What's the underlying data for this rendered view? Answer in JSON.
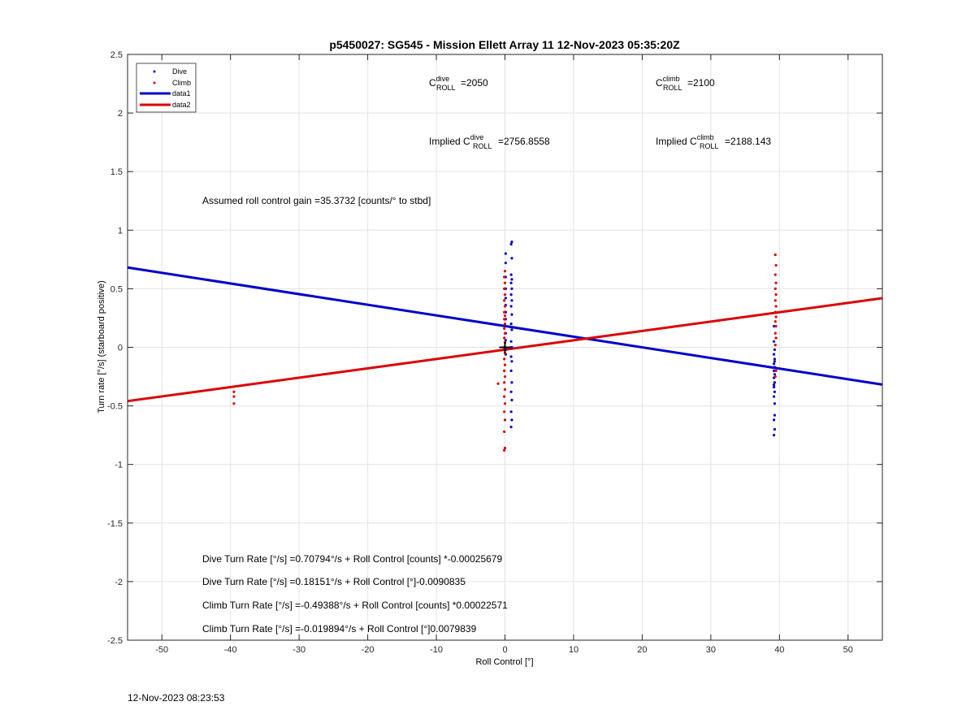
{
  "footer_timestamp": "12-Nov-2023 08:23:53",
  "colors": {
    "dive": "#0000cc",
    "climb": "#dd0000",
    "grid": "#e3e3e3",
    "axis": "#262626"
  },
  "chart_data": {
    "type": "scatter",
    "title": "p5450027: SG545 - Mission Ellett Array 11 12-Nov-2023 05:35:20Z",
    "xlabel": "Roll Control [°]",
    "ylabel": "Turn rate [°/s] (starboard positive)",
    "xlim": [
      -55,
      55
    ],
    "ylim": [
      -2.5,
      2.5
    ],
    "xticks": [
      -50,
      -40,
      -30,
      -20,
      -10,
      0,
      10,
      20,
      30,
      40,
      50
    ],
    "yticks": [
      2.5,
      2,
      1.5,
      1,
      0.5,
      0,
      -0.5,
      -1,
      -1.5,
      -2,
      -2.5
    ],
    "ytick_labels": [
      "2.5",
      "2",
      "1.5",
      "1",
      "0.5",
      "0",
      "-0.5",
      "-1",
      "-1.5",
      "-2",
      "-2.5"
    ],
    "grid": true,
    "legend": {
      "placement": "top-left",
      "entries": [
        {
          "label": "Dive",
          "style": "dot",
          "color": "#0000cc"
        },
        {
          "label": "Climb",
          "style": "dot",
          "color": "#dd0000"
        },
        {
          "label": "data1",
          "style": "line",
          "color": "#0000cc"
        },
        {
          "label": "data2",
          "style": "line",
          "color": "#dd0000"
        }
      ]
    },
    "series": [
      {
        "name": "Dive",
        "color": "#0000cc",
        "points": [
          [
            1.0,
            0.9
          ],
          [
            0.9,
            0.88
          ],
          [
            1.0,
            0.76
          ],
          [
            0.9,
            0.62
          ],
          [
            1.0,
            0.58
          ],
          [
            0.9,
            0.55
          ],
          [
            1.0,
            0.5
          ],
          [
            0.9,
            0.45
          ],
          [
            1.0,
            0.4
          ],
          [
            0.9,
            0.35
          ],
          [
            1.0,
            0.28
          ],
          [
            0.9,
            0.2
          ],
          [
            1.0,
            0.15
          ],
          [
            0.9,
            0.05
          ],
          [
            1.0,
            0.0
          ],
          [
            0.9,
            -0.08
          ],
          [
            1.0,
            -0.12
          ],
          [
            0.9,
            -0.2
          ],
          [
            1.0,
            -0.3
          ],
          [
            0.9,
            -0.38
          ],
          [
            1.0,
            -0.45
          ],
          [
            0.9,
            -0.55
          ],
          [
            1.0,
            -0.62
          ],
          [
            0.9,
            -0.68
          ],
          [
            0.1,
            0.8
          ],
          [
            0.1,
            0.72
          ],
          [
            0.1,
            0.6
          ],
          [
            0.1,
            0.5
          ],
          [
            0.1,
            0.42
          ],
          [
            0.1,
            0.36
          ],
          [
            0.1,
            0.3
          ],
          [
            0.1,
            0.24
          ],
          [
            0.1,
            0.12
          ],
          [
            0.1,
            0.06
          ],
          [
            0.1,
            -0.02
          ],
          [
            0.1,
            -0.06
          ],
          [
            39.2,
            0.05
          ],
          [
            39.3,
            -0.02
          ],
          [
            39.2,
            -0.06
          ],
          [
            39.3,
            -0.1
          ],
          [
            39.2,
            -0.14
          ],
          [
            39.3,
            -0.17
          ],
          [
            39.2,
            -0.2
          ],
          [
            39.3,
            -0.23
          ],
          [
            39.2,
            -0.26
          ],
          [
            39.3,
            -0.3
          ],
          [
            39.2,
            -0.34
          ],
          [
            39.3,
            -0.38
          ],
          [
            39.2,
            -0.42
          ],
          [
            39.3,
            -0.48
          ],
          [
            39.2,
            0.18
          ],
          [
            39.3,
            -0.58
          ],
          [
            39.2,
            -0.62
          ],
          [
            39.3,
            -0.7
          ],
          [
            39.2,
            -0.75
          ],
          [
            39.3,
            -0.12
          ],
          [
            39.2,
            -0.32
          ]
        ]
      },
      {
        "name": "Climb",
        "color": "#dd0000",
        "points": [
          [
            -39.5,
            -0.38
          ],
          [
            -39.5,
            -0.42
          ],
          [
            -39.5,
            -0.48
          ],
          [
            -1.0,
            -0.31
          ],
          [
            0.0,
            0.65
          ],
          [
            -0.1,
            0.6
          ],
          [
            0.0,
            0.55
          ],
          [
            -0.1,
            0.5
          ],
          [
            0.0,
            0.45
          ],
          [
            -0.1,
            0.4
          ],
          [
            0.0,
            0.35
          ],
          [
            -0.1,
            0.3
          ],
          [
            0.0,
            0.27
          ],
          [
            -0.1,
            0.24
          ],
          [
            0.0,
            0.2
          ],
          [
            -0.1,
            0.16
          ],
          [
            0.0,
            0.12
          ],
          [
            -0.1,
            0.08
          ],
          [
            0.0,
            0.04
          ],
          [
            -0.1,
            0.0
          ],
          [
            0.0,
            -0.05
          ],
          [
            -0.1,
            -0.1
          ],
          [
            0.0,
            -0.15
          ],
          [
            -0.1,
            -0.2
          ],
          [
            0.0,
            -0.25
          ],
          [
            -0.1,
            -0.3
          ],
          [
            0.0,
            -0.36
          ],
          [
            -0.1,
            -0.42
          ],
          [
            0.0,
            -0.48
          ],
          [
            -0.1,
            -0.55
          ],
          [
            0.0,
            -0.62
          ],
          [
            -0.1,
            -0.72
          ],
          [
            0.0,
            -0.86
          ],
          [
            -0.1,
            -0.88
          ],
          [
            39.4,
            0.79
          ],
          [
            39.5,
            0.7
          ],
          [
            39.4,
            0.62
          ],
          [
            39.5,
            0.55
          ],
          [
            39.4,
            0.5
          ],
          [
            39.5,
            0.45
          ],
          [
            39.4,
            0.4
          ],
          [
            39.5,
            0.35
          ],
          [
            39.4,
            0.3
          ],
          [
            39.5,
            0.26
          ],
          [
            39.4,
            0.22
          ],
          [
            39.5,
            0.18
          ],
          [
            39.4,
            0.12
          ],
          [
            39.5,
            0.08
          ],
          [
            39.4,
            0.02
          ],
          [
            39.5,
            -0.2
          ],
          [
            39.4,
            -0.25
          ]
        ]
      }
    ],
    "fit_lines": [
      {
        "name": "data1",
        "color": "#0000cc",
        "intercept": 0.18151,
        "slope": -0.0090835
      },
      {
        "name": "data2",
        "color": "#dd0000",
        "intercept": -0.019894,
        "slope": 0.0079839
      }
    ],
    "center_marker": {
      "x": 0,
      "y": 0,
      "symbol": "+"
    },
    "annotations": {
      "c_roll_dive": {
        "base": "C",
        "sup": "dive",
        "sub": "ROLL",
        "value": "=2050"
      },
      "c_roll_climb": {
        "base": "C",
        "sup": "climb",
        "sub": "ROLL",
        "value": "=2100"
      },
      "implied_dive": {
        "prefix": "Implied C",
        "sup": "dive",
        "sub": "ROLL",
        "value": "=2756.8558"
      },
      "implied_climb": {
        "prefix": "Implied C",
        "sup": "climb",
        "sub": "ROLL",
        "value": "=2188.143"
      },
      "gain": "Assumed roll control gain =35.3732 [counts/° to stbd]",
      "eq1": "Dive Turn Rate [°/s] =0.70794°/s + Roll Control [counts] *-0.00025679",
      "eq2": "Dive Turn Rate [°/s] =0.18151°/s + Roll Control [°]-0.0090835",
      "eq3": "Climb Turn Rate [°/s] =-0.49388°/s + Roll Control [counts] *0.00022571",
      "eq4": "Climb Turn Rate [°/s] =-0.019894°/s + Roll Control [°]0.0079839"
    }
  }
}
